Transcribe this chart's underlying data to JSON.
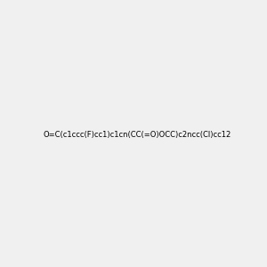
{
  "smiles": "O=C(c1ccc(F)cc1)c1cn(CC(=O)OCC)c2ncc(Cl)cc12",
  "image_size": 300,
  "background_color": "#f0f0f0",
  "title": "",
  "atom_colors": {
    "N": "#0000FF",
    "O": "#FF0000",
    "Cl": "#00CC00",
    "F": "#FF00FF"
  }
}
